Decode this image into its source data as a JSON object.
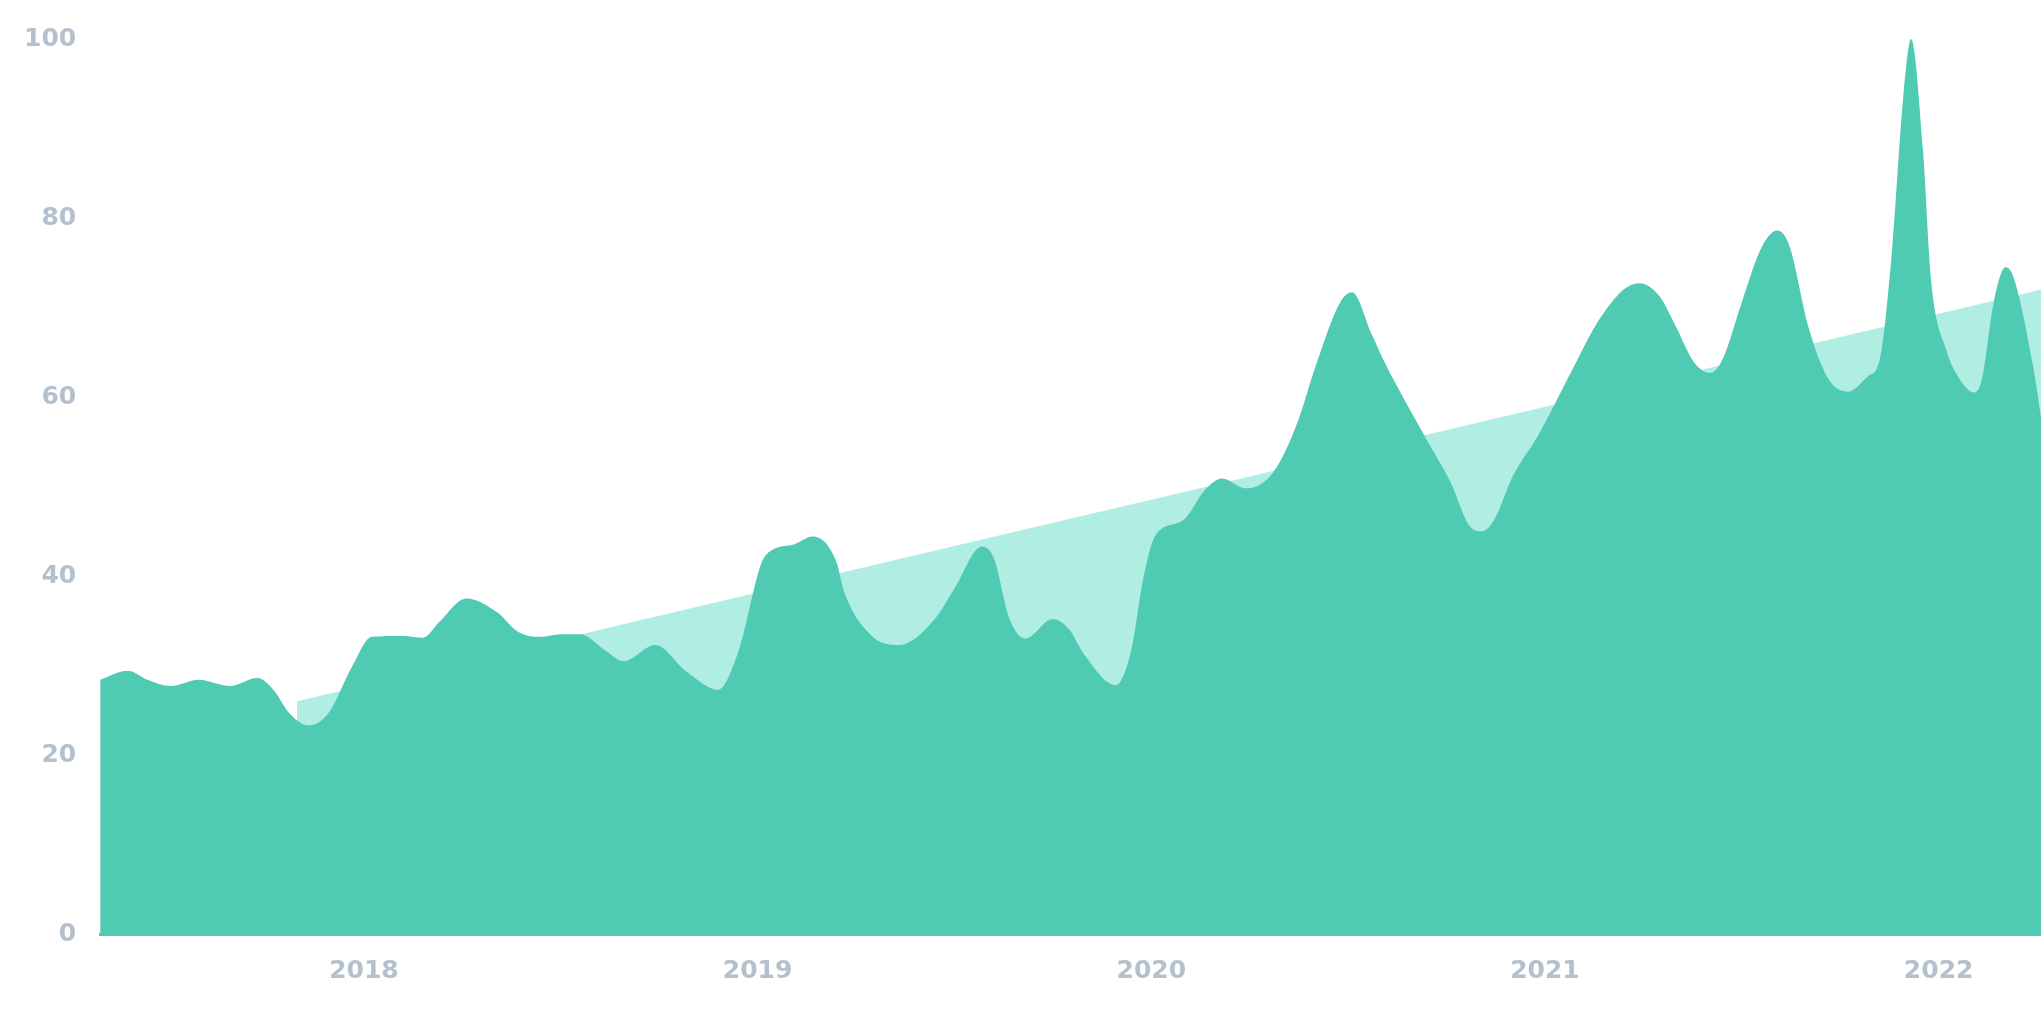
{
  "chart_data": {
    "type": "area",
    "xlim": [
      2017.33,
      2022.26
    ],
    "xticks": [
      2018,
      2019,
      2020,
      2021,
      2022
    ],
    "ylim": [
      0,
      100
    ],
    "yticks": [
      0,
      20,
      40,
      60,
      80,
      100
    ],
    "grid": false,
    "legend": false,
    "series": [
      {
        "color": "#4fcbb3",
        "x": [
          2017.33,
          2017.4,
          2017.45,
          2017.51,
          2017.58,
          2017.66,
          2017.73,
          2017.77,
          2017.81,
          2017.86,
          2017.91,
          2017.97,
          2018.02,
          2018.1,
          2018.15,
          2018.19,
          2018.26,
          2018.34,
          2018.39,
          2018.45,
          2018.5,
          2018.55,
          2018.61,
          2018.66,
          2018.74,
          2018.82,
          2018.9,
          2018.95,
          2019.02,
          2019.09,
          2019.14,
          2019.2,
          2019.22,
          2019.29,
          2019.36,
          2019.45,
          2019.5,
          2019.57,
          2019.6,
          2019.64,
          2019.68,
          2019.75,
          2019.79,
          2019.83,
          2019.91,
          2019.95,
          2019.98,
          2020.01,
          2020.08,
          2020.14,
          2020.18,
          2020.24,
          2020.31,
          2020.37,
          2020.42,
          2020.48,
          2020.51,
          2020.56,
          2020.59,
          2020.7,
          2020.76,
          2020.81,
          2020.84,
          2020.87,
          2020.92,
          2020.98,
          2021.07,
          2021.13,
          2021.2,
          2021.24,
          2021.29,
          2021.33,
          2021.38,
          2021.42,
          2021.45,
          2021.5,
          2021.55,
          2021.59,
          2021.62,
          2021.67,
          2021.72,
          2021.77,
          2021.82,
          2021.85,
          2021.88,
          2021.91,
          2021.93,
          2021.96,
          2021.98,
          2022.02,
          2022.06,
          2022.09,
          2022.11,
          2022.14,
          2022.17,
          2022.19,
          2022.24,
          2022.26
        ],
        "values": [
          28.4,
          29.4,
          28.4,
          27.7,
          28.4,
          27.7,
          28.6,
          27.3,
          24.7,
          23.3,
          24.7,
          29.9,
          33.2,
          33.3,
          33.1,
          34.8,
          37.5,
          35.9,
          33.8,
          33.2,
          33.5,
          33.5,
          31.8,
          30.5,
          32.3,
          29.3,
          27.3,
          31.4,
          42.3,
          43.5,
          44.4,
          41.6,
          38.2,
          33.3,
          32.3,
          35.2,
          38.6,
          43.3,
          42,
          35.2,
          33,
          35.2,
          34.1,
          31.2,
          27.8,
          31.9,
          39.8,
          44.5,
          46.2,
          49.8,
          50.9,
          49.8,
          51.6,
          57,
          63.8,
          70.6,
          71.7,
          67,
          64.1,
          55.2,
          50.5,
          45.5,
          45,
          46.2,
          51.3,
          55.5,
          63.1,
          68.1,
          72,
          72.7,
          71.3,
          68.1,
          63.8,
          62.7,
          64.1,
          70.6,
          76.7,
          78.6,
          77,
          67.7,
          62,
          60.6,
          62.3,
          64.1,
          75.6,
          93.5,
          100,
          87.8,
          73.4,
          65.2,
          61.6,
          60.5,
          62,
          70.6,
          74.5,
          73.4,
          63.4,
          57.7
        ]
      },
      {
        "color": "#b0ede3",
        "x": [
          2017.83,
          2022.26
        ],
        "values": [
          26,
          72
        ]
      }
    ]
  }
}
